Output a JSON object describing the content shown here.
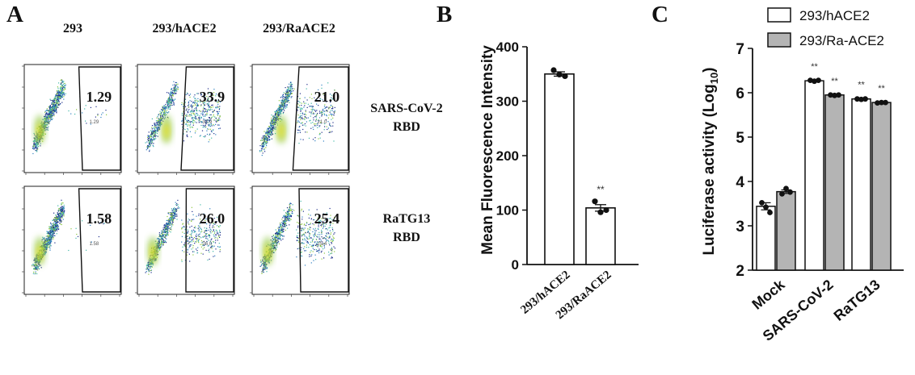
{
  "panel_letters": {
    "a": "A",
    "b": "B",
    "c": "C"
  },
  "panel_a": {
    "columns": [
      "293",
      "293/hACE2",
      "293/RaACE2"
    ],
    "rows": [
      {
        "label_line1": "SARS-CoV-2",
        "label_line2": "RBD",
        "gate_values": [
          "1.29",
          "33.9",
          "21.0"
        ]
      },
      {
        "label_line1": "RaTG13",
        "label_line2": "RBD",
        "gate_values": [
          "1.58",
          "26.0",
          "25.4"
        ]
      }
    ],
    "cloud_colors": [
      "#1f2d8a",
      "#2e7fc0",
      "#3fb7a6",
      "#8cc63f",
      "#f2e21c"
    ]
  },
  "chart_data": [
    {
      "type": "bar",
      "panel": "B",
      "categories": [
        "293/hACE2",
        "293/RaACE2"
      ],
      "values": [
        350,
        104
      ],
      "points": [
        [
          357,
          349,
          346
        ],
        [
          116,
          96,
          100
        ]
      ],
      "errors": [
        4,
        6
      ],
      "annotations": [
        "",
        "**"
      ],
      "ylabel": "Mean Fluorescence Intensity",
      "ylim": [
        0,
        400
      ],
      "yticks": [
        "0",
        "100",
        "200",
        "300",
        "400"
      ],
      "grid": false,
      "bar_color": "#ffffff"
    },
    {
      "type": "bar",
      "panel": "C",
      "categories": [
        "Mock",
        "SARS-CoV-2",
        "RaTG13"
      ],
      "series": [
        {
          "name": "293/hACE2",
          "values": [
            3.44,
            6.27,
            5.86
          ],
          "points": [
            [
              3.52,
              3.42,
              3.3
            ],
            [
              6.28,
              6.26,
              6.28
            ],
            [
              5.86,
              5.85,
              5.86
            ]
          ],
          "errors": [
            0.08,
            0.02,
            0.02
          ],
          "annotations": [
            "",
            "**",
            "**"
          ],
          "color": "#ffffff"
        },
        {
          "name": "293/Ra-ACE2",
          "values": [
            3.77,
            5.95,
            5.78
          ],
          "points": [
            [
              3.72,
              3.84,
              3.76
            ],
            [
              5.95,
              5.94,
              5.95
            ],
            [
              5.77,
              5.78,
              5.78
            ]
          ],
          "errors": [
            0.04,
            0.01,
            0.01
          ],
          "annotations": [
            "",
            "**",
            "**"
          ],
          "color": "#b4b4b4"
        }
      ],
      "ylabel_main": "Luciferase activity (Log",
      "ylabel_sub": "10",
      "ylabel_end": ")",
      "ylim": [
        2,
        7
      ],
      "yticks": [
        "2",
        "3",
        "4",
        "5",
        "6",
        "7"
      ],
      "legend_position": "top-right",
      "grid": false
    }
  ]
}
